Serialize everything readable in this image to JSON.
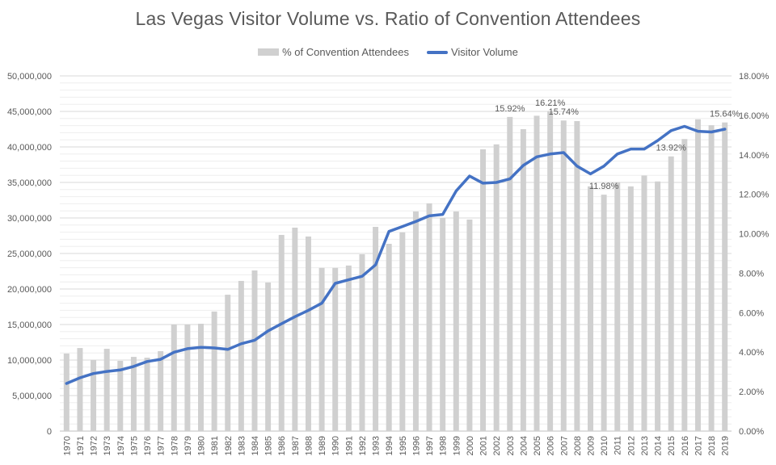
{
  "chart_data": {
    "type": "bar+line",
    "title": "Las Vegas Visitor Volume vs. Ratio of Convention Attendees",
    "legend": {
      "placement": "top",
      "entries": [
        {
          "name": "% of Convention Attendees",
          "kind": "bar",
          "color": "#d0d0d0"
        },
        {
          "name": "Visitor Volume",
          "kind": "line",
          "color": "#4472c4"
        }
      ]
    },
    "categories": [
      "1970",
      "1971",
      "1972",
      "1973",
      "1974",
      "1975",
      "1976",
      "1977",
      "1978",
      "1979",
      "1980",
      "1981",
      "1982",
      "1983",
      "1984",
      "1985",
      "1986",
      "1987",
      "1988",
      "1989",
      "1990",
      "1991",
      "1992",
      "1993",
      "1994",
      "1995",
      "1996",
      "1997",
      "1998",
      "1999",
      "2000",
      "2001",
      "2002",
      "2003",
      "2004",
      "2005",
      "2006",
      "2007",
      "2008",
      "2009",
      "2010",
      "2011",
      "2012",
      "2013",
      "2014",
      "2015",
      "2016",
      "2017",
      "2018",
      "2019"
    ],
    "series": [
      {
        "name": "% of Convention Attendees",
        "type": "bar",
        "axis": "right",
        "unit": "%",
        "color": "#d0d0d0",
        "values": [
          3.93,
          4.21,
          3.6,
          4.17,
          3.56,
          3.76,
          3.72,
          4.05,
          5.4,
          5.4,
          5.44,
          6.06,
          6.91,
          7.61,
          8.14,
          7.53,
          9.94,
          10.31,
          9.86,
          8.27,
          8.27,
          8.39,
          8.96,
          10.35,
          9.49,
          10.07,
          11.13,
          11.54,
          10.8,
          11.13,
          10.72,
          14.28,
          14.53,
          15.92,
          15.3,
          15.98,
          16.21,
          15.74,
          15.71,
          12.4,
          11.98,
          12.6,
          12.4,
          12.95,
          12.65,
          13.92,
          14.8,
          15.8,
          15.5,
          15.64
        ]
      },
      {
        "name": "Visitor Volume",
        "type": "line",
        "axis": "left",
        "unit": "visitors",
        "color": "#4472c4",
        "values": [
          6700000,
          7500000,
          8100000,
          8400000,
          8600000,
          9100000,
          9800000,
          10100000,
          11100000,
          11600000,
          11800000,
          11700000,
          11500000,
          12300000,
          12800000,
          14100000,
          15100000,
          16100000,
          17000000,
          18000000,
          20800000,
          21300000,
          21800000,
          23400000,
          28100000,
          28800000,
          29500000,
          30300000,
          30500000,
          33800000,
          35900000,
          34900000,
          35000000,
          35500000,
          37400000,
          38600000,
          39000000,
          39200000,
          37300000,
          36200000,
          37300000,
          39000000,
          39700000,
          39700000,
          40900000,
          42300000,
          42900000,
          42200000,
          42100000,
          42500000
        ]
      }
    ],
    "data_labels": [
      {
        "category": "2003",
        "text": "15.92%"
      },
      {
        "category": "2006",
        "text": "16.21%"
      },
      {
        "category": "2007",
        "text": "15.74%"
      },
      {
        "category": "2010",
        "text": "11.98%"
      },
      {
        "category": "2015",
        "text": "13.92%"
      },
      {
        "category": "2019",
        "text": "15.64%"
      }
    ],
    "y_left": {
      "label": "",
      "range": [
        0,
        50000000
      ],
      "ticks": [
        0,
        5000000,
        10000000,
        15000000,
        20000000,
        25000000,
        30000000,
        35000000,
        40000000,
        45000000,
        50000000
      ],
      "tick_labels": [
        "0",
        "5,000,000",
        "10,000,000",
        "15,000,000",
        "20,000,000",
        "25,000,000",
        "30,000,000",
        "35,000,000",
        "40,000,000",
        "45,000,000",
        "50,000,000"
      ]
    },
    "y_right": {
      "label": "",
      "range": [
        0,
        18
      ],
      "ticks": [
        0,
        2,
        4,
        6,
        8,
        10,
        12,
        14,
        16,
        18
      ],
      "tick_labels": [
        "0.00%",
        "2.00%",
        "4.00%",
        "6.00%",
        "8.00%",
        "10.00%",
        "12.00%",
        "14.00%",
        "16.00%",
        "18.00%"
      ]
    },
    "xlabel": "",
    "grid": true,
    "minor_grid": true
  }
}
